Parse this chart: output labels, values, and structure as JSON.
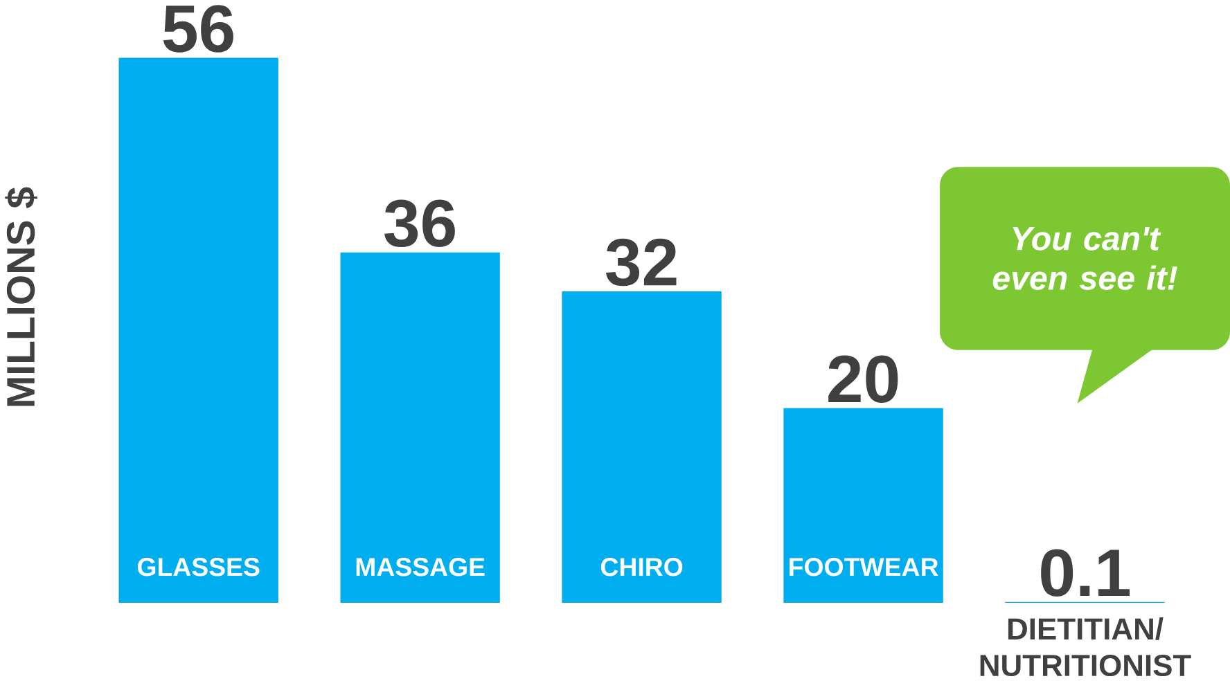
{
  "chart_data": {
    "type": "bar",
    "categories": [
      "GLASSES",
      "MASSAGE",
      "CHIRO",
      "FOOTWEAR",
      "DIETITIAN/ NUTRITIONIST"
    ],
    "values": [
      56,
      36,
      32,
      20,
      0.1
    ],
    "color": "#00aeef",
    "ylabel": "MILLIONS $",
    "data_labels": true,
    "annotations": [
      "You can't even see it!"
    ]
  }
}
